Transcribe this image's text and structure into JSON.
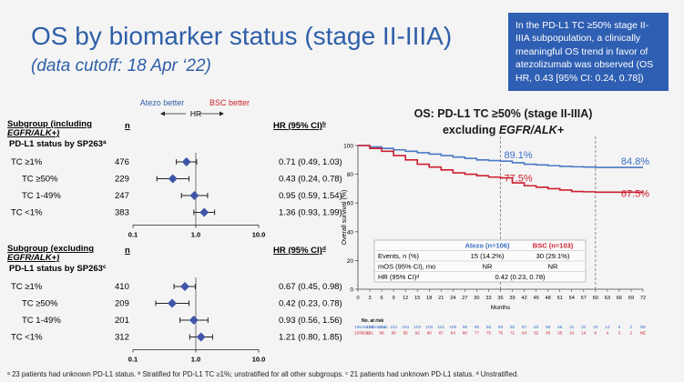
{
  "slide": {
    "title": "OS by biomarker status (stage II-IIIA)",
    "subtitle": "(data cutoff: 18 Apr ‘22)",
    "callout": "In the PD-L1 TC ≥50% stage II-IIIA subpopulation, a clinically meaningful OS trend in favor of atezolizumab was observed (OS HR, 0.43 [95% CI: 0.24, 0.78])",
    "footnote": "ᵃ 23 patients had unknown PD-L1 status. ᵇ Stratified for PD-L1 TC ≥1%; unstratified for all other subgroups. ᶜ 21 patients had unknown PD-L1 status. ᵈ Unstratified."
  },
  "chart_data": [
    {
      "type": "forest",
      "favors_left": "Atezo better",
      "favors_right": "BSC better",
      "axis_label": "HR",
      "subgroup_header_line1": "Subgroup (including",
      "subgroup_header_line2": "EGFR/ALK+)",
      "n_header": "n",
      "hr_header": "HR (95% CI)",
      "hr_header_sup": "b",
      "section_label": "PD-L1 status by SP263",
      "section_sup": "a",
      "xscale": "log",
      "xlim": [
        0.1,
        10
      ],
      "ticks": [
        {
          "value": 0.1,
          "label": "0.1"
        },
        {
          "value": 1,
          "label": "1.0"
        },
        {
          "value": 10,
          "label": "10.0"
        }
      ],
      "rows": [
        {
          "label": "TC ≥1%",
          "n": "476",
          "hr": 0.71,
          "lo": 0.49,
          "hi": 1.03,
          "text": "0.71 (0.49, 1.03)"
        },
        {
          "label": "TC ≥50%",
          "n": "229",
          "hr": 0.43,
          "lo": 0.24,
          "hi": 0.78,
          "text": "0.43 (0.24, 0.78)"
        },
        {
          "label": "TC 1-49%",
          "n": "247",
          "hr": 0.95,
          "lo": 0.59,
          "hi": 1.54,
          "text": "0.95 (0.59, 1.54)"
        },
        {
          "label": "TC <1%",
          "n": "383",
          "hr": 1.36,
          "lo": 0.93,
          "hi": 1.99,
          "text": "1.36 (0.93, 1.99)"
        }
      ]
    },
    {
      "type": "forest",
      "subgroup_header_line1": "Subgroup (excluding",
      "subgroup_header_line2": "EGFR/ALK+)",
      "n_header": "n",
      "hr_header": "HR (95% CI)",
      "hr_header_sup": "d",
      "section_label": "PD-L1 status by SP263",
      "section_sup": "c",
      "xscale": "log",
      "xlim": [
        0.1,
        10
      ],
      "ticks": [
        {
          "value": 0.1,
          "label": "0.1"
        },
        {
          "value": 1,
          "label": "1.0"
        },
        {
          "value": 10,
          "label": "10.0"
        }
      ],
      "rows": [
        {
          "label": "TC ≥1%",
          "n": "410",
          "hr": 0.67,
          "lo": 0.45,
          "hi": 0.98,
          "text": "0.67 (0.45, 0.98)"
        },
        {
          "label": "TC ≥50%",
          "n": "209",
          "hr": 0.42,
          "lo": 0.23,
          "hi": 0.78,
          "text": "0.42 (0.23, 0.78)"
        },
        {
          "label": "TC 1-49%",
          "n": "201",
          "hr": 0.93,
          "lo": 0.56,
          "hi": 1.56,
          "text": "0.93 (0.56, 1.56)"
        },
        {
          "label": "TC <1%",
          "n": "312",
          "hr": 1.21,
          "lo": 0.8,
          "hi": 1.85,
          "text": "1.21 (0.80, 1.85)"
        }
      ]
    },
    {
      "type": "line",
      "title_line1": "OS: PD-L1 TC ≥50% (stage II-IIIA)",
      "title_line2": "excluding EGFR/ALK+",
      "xlabel": "Months",
      "ylabel": "Overall survival (%)",
      "xlim": [
        0,
        72
      ],
      "ylim": [
        0,
        100
      ],
      "xticks": [
        0,
        3,
        6,
        9,
        12,
        15,
        18,
        21,
        24,
        27,
        30,
        33,
        36,
        39,
        42,
        45,
        48,
        51,
        54,
        57,
        60,
        63,
        66,
        69,
        72
      ],
      "yticks": [
        0,
        20,
        40,
        60,
        80,
        100
      ],
      "dashed_at": [
        36,
        60
      ],
      "annotations": [
        {
          "text": "89.1%",
          "x": 36,
          "y": 89.1,
          "color": "#3b6ec4"
        },
        {
          "text": "77.5%",
          "x": 36,
          "y": 77.5,
          "color": "#cc1f2f"
        },
        {
          "text": "84.8%",
          "x": 60,
          "y": 84.8,
          "color": "#3b6ec4"
        },
        {
          "text": "67.5%",
          "x": 60,
          "y": 67.5,
          "color": "#cc1f2f"
        }
      ],
      "series": [
        {
          "name": "Atezo",
          "color": "#4a78c4",
          "x": [
            0,
            3,
            6,
            9,
            12,
            15,
            18,
            21,
            24,
            27,
            30,
            33,
            36,
            39,
            42,
            45,
            48,
            51,
            54,
            57,
            60,
            63,
            66,
            69,
            72
          ],
          "y": [
            100,
            99,
            98,
            97,
            96,
            95,
            94,
            93,
            92,
            91,
            90,
            89.5,
            89.1,
            88,
            87,
            86.5,
            86,
            85.5,
            85.2,
            85,
            84.8,
            84.8,
            84.8,
            84.8,
            84.8
          ]
        },
        {
          "name": "BSC",
          "color": "#cc1f2f",
          "x": [
            0,
            3,
            6,
            9,
            12,
            15,
            18,
            21,
            24,
            27,
            30,
            33,
            36,
            39,
            42,
            45,
            48,
            51,
            54,
            57,
            60,
            63,
            66,
            69,
            72
          ],
          "y": [
            100,
            98,
            96,
            93,
            90,
            87,
            85,
            83,
            81,
            80,
            79,
            78,
            77.5,
            74,
            72,
            71,
            70,
            69,
            68,
            67.8,
            67.5,
            67.5,
            67.5,
            67.5,
            67.5
          ]
        }
      ],
      "table": {
        "headers": [
          "",
          "Atezo (n=106)",
          "BSC (n=103)"
        ],
        "rows": [
          [
            "Events, n (%)",
            "15 (14.2%)",
            "30 (29.1%)"
          ],
          [
            "mOS (95% CI), mo",
            "NR",
            "NR"
          ],
          [
            "HR (95% CI)ᵈ",
            "0.42 (0.23, 0.78)",
            ""
          ]
        ]
      },
      "risk_table": {
        "header": "No. at risk",
        "rows": [
          {
            "label": "Atezolizumab",
            "color": "#3b6ec4",
            "values": [
              "106",
              "104",
              "104",
              "104",
              "104",
              "103",
              "103",
              "101",
              "100",
              "99",
              "96",
              "96",
              "93",
              "90",
              "87",
              "83",
              "69",
              "58",
              "41",
              "32",
              "20",
              "13",
              "8",
              "2",
              "NE"
            ]
          },
          {
            "label": "BSC",
            "color": "#cc1f2f",
            "values": [
              "103",
              "101",
              "98",
              "96",
              "95",
              "92",
              "90",
              "87",
              "84",
              "80",
              "77",
              "75",
              "75",
              "71",
              "64",
              "52",
              "45",
              "35",
              "24",
              "14",
              "8",
              "4",
              "3",
              "2",
              "NE"
            ]
          }
        ]
      }
    }
  ]
}
